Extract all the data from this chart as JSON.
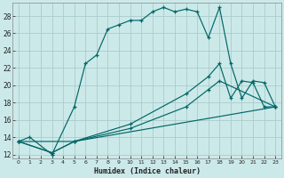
{
  "xlabel": "Humidex (Indice chaleur)",
  "background_color": "#cce9e9",
  "grid_color": "#b8d8d8",
  "line_color": "#006666",
  "ylim": [
    11.5,
    29.5
  ],
  "xlim": [
    -0.5,
    23.5
  ],
  "yticks": [
    12,
    14,
    16,
    18,
    20,
    22,
    24,
    26,
    28
  ],
  "xticks": [
    0,
    1,
    2,
    3,
    4,
    5,
    6,
    7,
    8,
    9,
    10,
    11,
    12,
    13,
    14,
    15,
    16,
    17,
    18,
    19,
    20,
    21,
    22,
    23
  ],
  "line1_x": [
    0,
    1,
    3,
    5,
    6,
    7,
    8,
    9,
    10,
    11,
    12,
    13,
    14,
    15,
    16,
    17,
    18,
    19,
    20,
    21,
    22,
    23
  ],
  "line1_y": [
    13.5,
    14.0,
    12.0,
    17.5,
    22.5,
    23.5,
    26.5,
    27.0,
    27.5,
    27.5,
    28.5,
    29.0,
    28.5,
    28.8,
    28.5,
    25.5,
    29.0,
    22.5,
    18.5,
    20.5,
    20.3,
    17.5
  ],
  "line2_x": [
    0,
    3,
    5,
    10,
    15,
    17,
    18,
    19,
    20,
    21,
    22,
    23
  ],
  "line2_y": [
    13.5,
    12.2,
    13.5,
    15.5,
    19.0,
    21.0,
    22.5,
    18.5,
    20.5,
    20.3,
    17.5,
    17.5
  ],
  "line3_x": [
    0,
    3,
    5,
    10,
    15,
    17,
    18,
    23
  ],
  "line3_y": [
    13.5,
    12.2,
    13.5,
    15.0,
    17.5,
    19.5,
    20.5,
    17.5
  ],
  "line4_x": [
    0,
    5,
    23
  ],
  "line4_y": [
    13.5,
    13.5,
    17.5
  ]
}
